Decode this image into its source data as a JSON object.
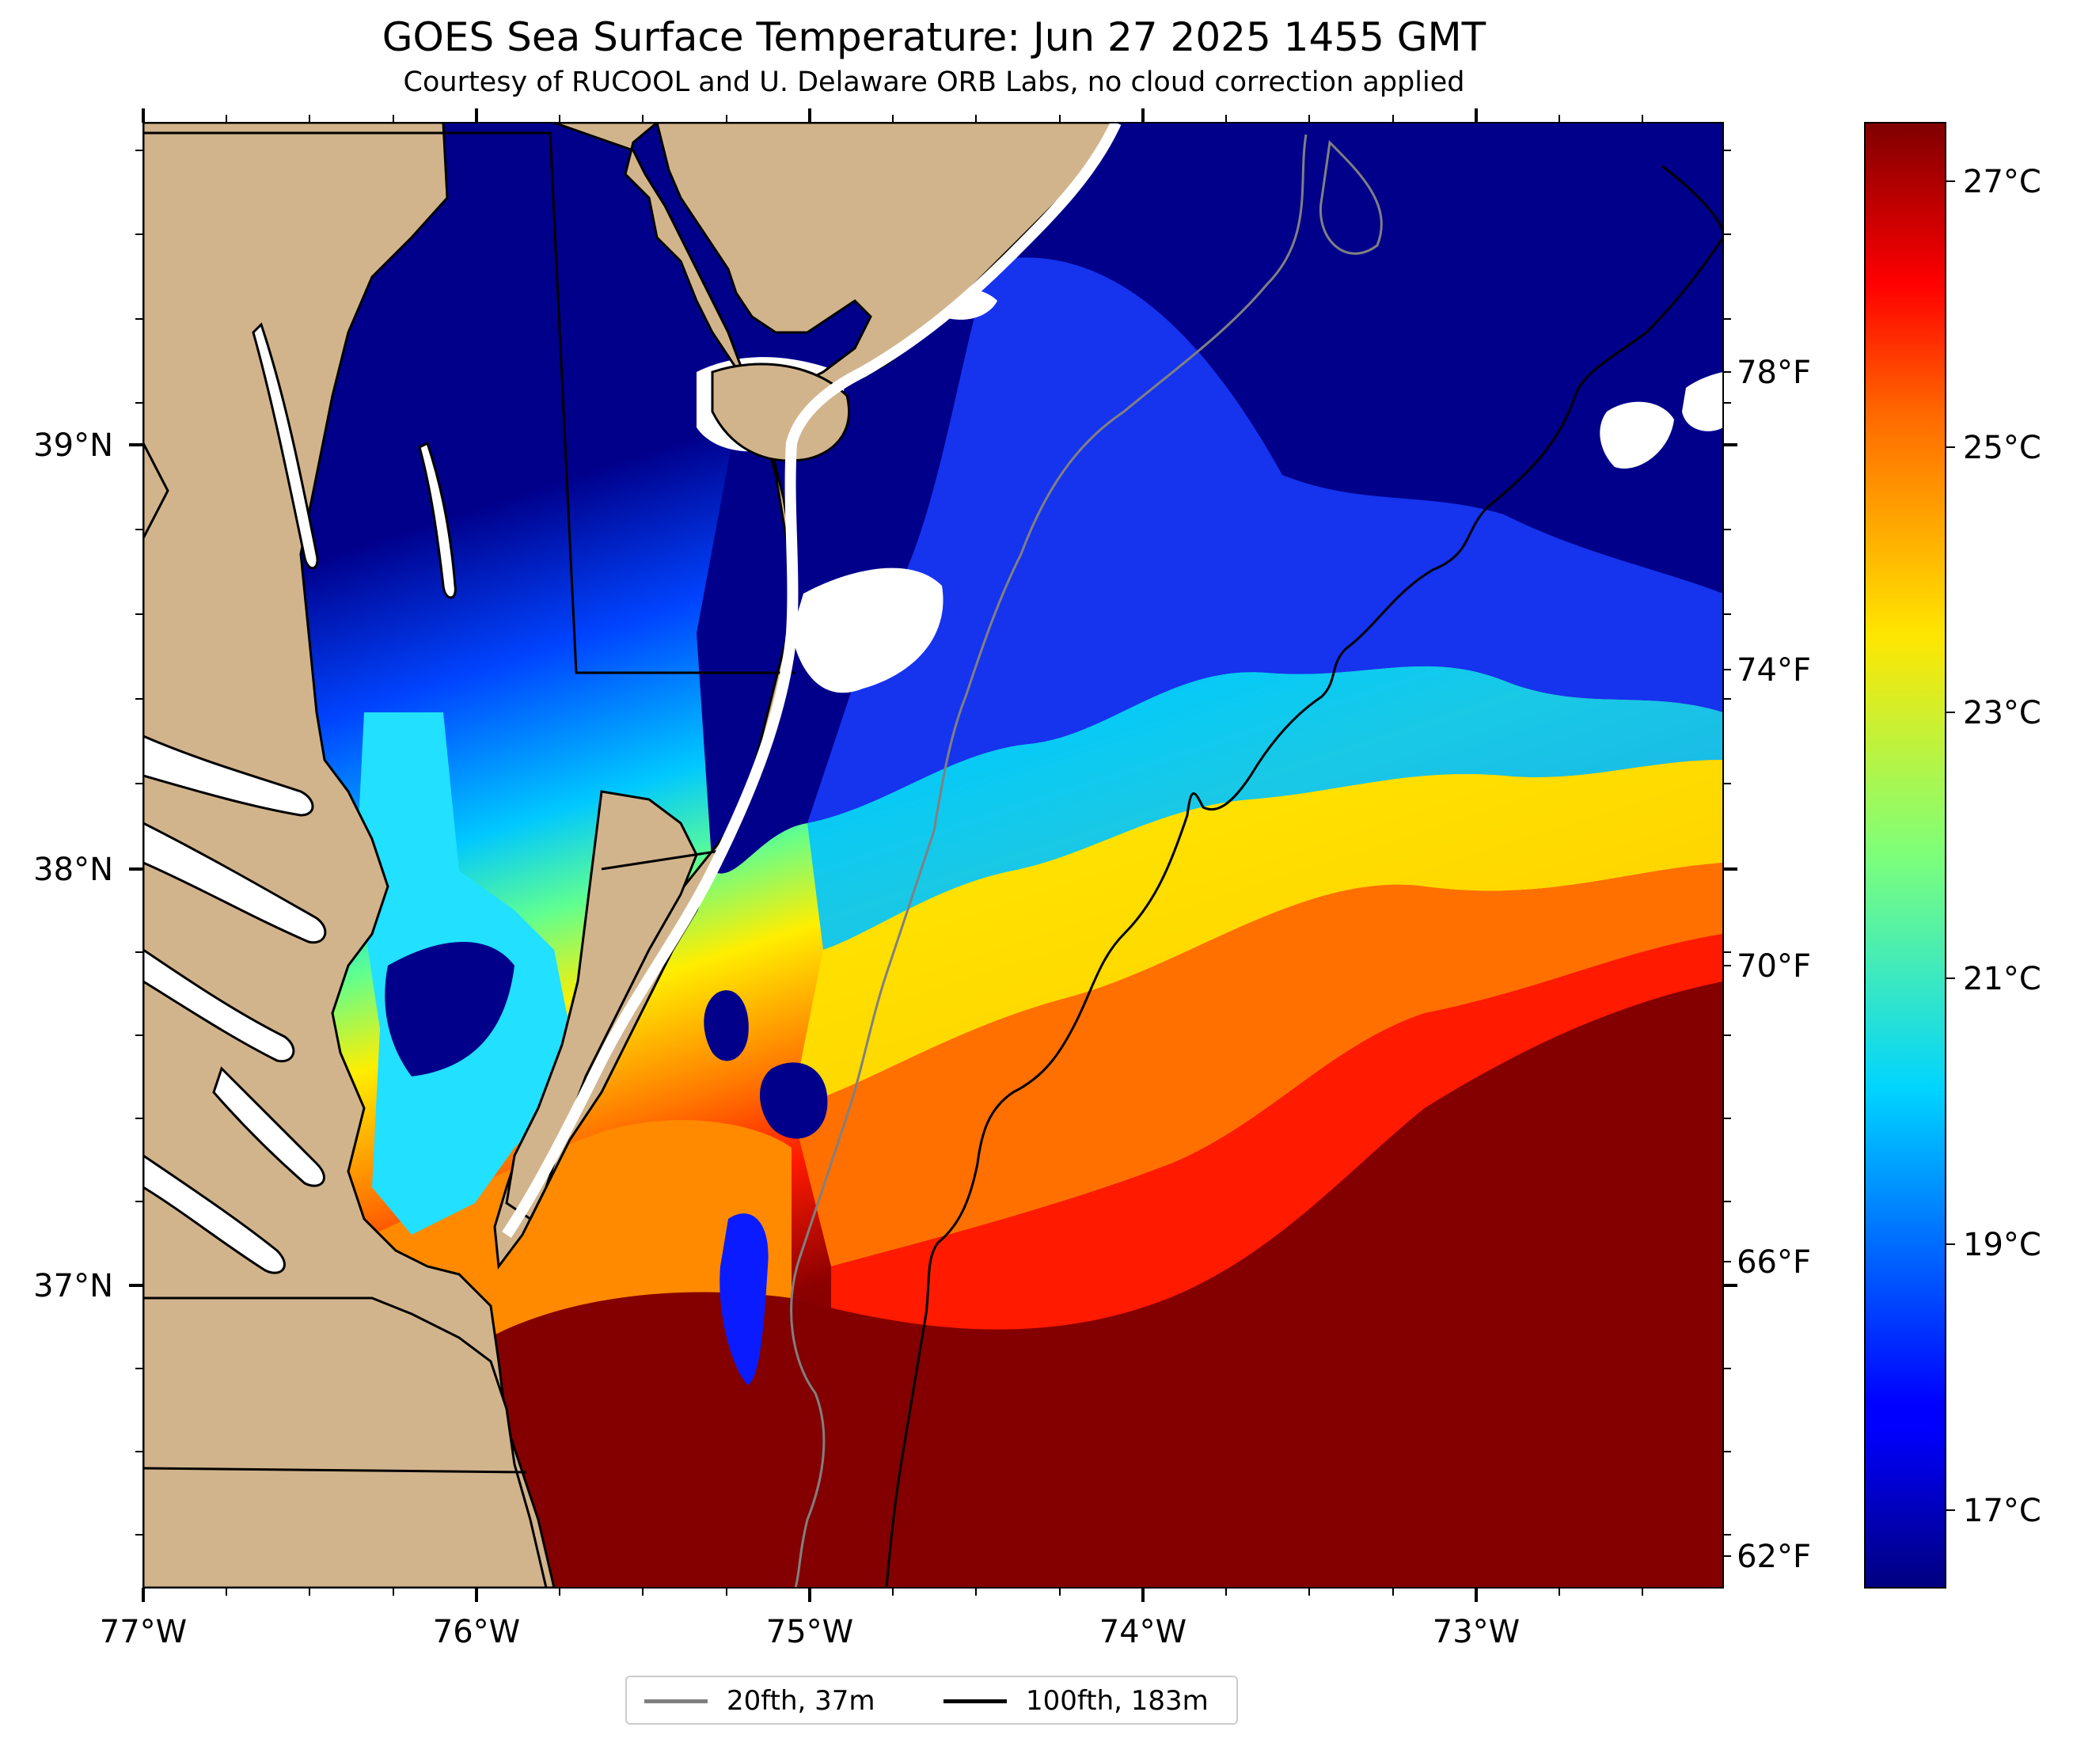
{
  "title": "GOES Sea Surface Temperature: Jun 27 2025 1455 GMT",
  "subtitle": "Courtesy of RUCOOL and U. Delaware ORB Labs, no cloud correction applied",
  "map": {
    "lon_range": [
      -77.0,
      -72.25
    ],
    "lat_range": [
      36.3,
      39.78
    ],
    "x_ticks": [
      "77°W",
      "76°W",
      "75°W",
      "74°W",
      "73°W"
    ],
    "y_ticks": [
      "39°N",
      "38°N",
      "37°N"
    ],
    "land_color": "#d2b48c",
    "cloud_color": "#ffffff"
  },
  "colorbar": {
    "colormap": "jet",
    "range_c": [
      16.0,
      27.5
    ],
    "celsius_ticks": [
      "27°C",
      "25°C",
      "23°C",
      "21°C",
      "19°C",
      "17°C"
    ],
    "fahrenheit_ticks": [
      "78°F",
      "74°F",
      "70°F",
      "66°F",
      "62°F"
    ]
  },
  "legend": {
    "items": [
      {
        "label": "20fth, 37m",
        "color": "#808080"
      },
      {
        "label": "100fth, 183m",
        "color": "#000000"
      }
    ]
  }
}
